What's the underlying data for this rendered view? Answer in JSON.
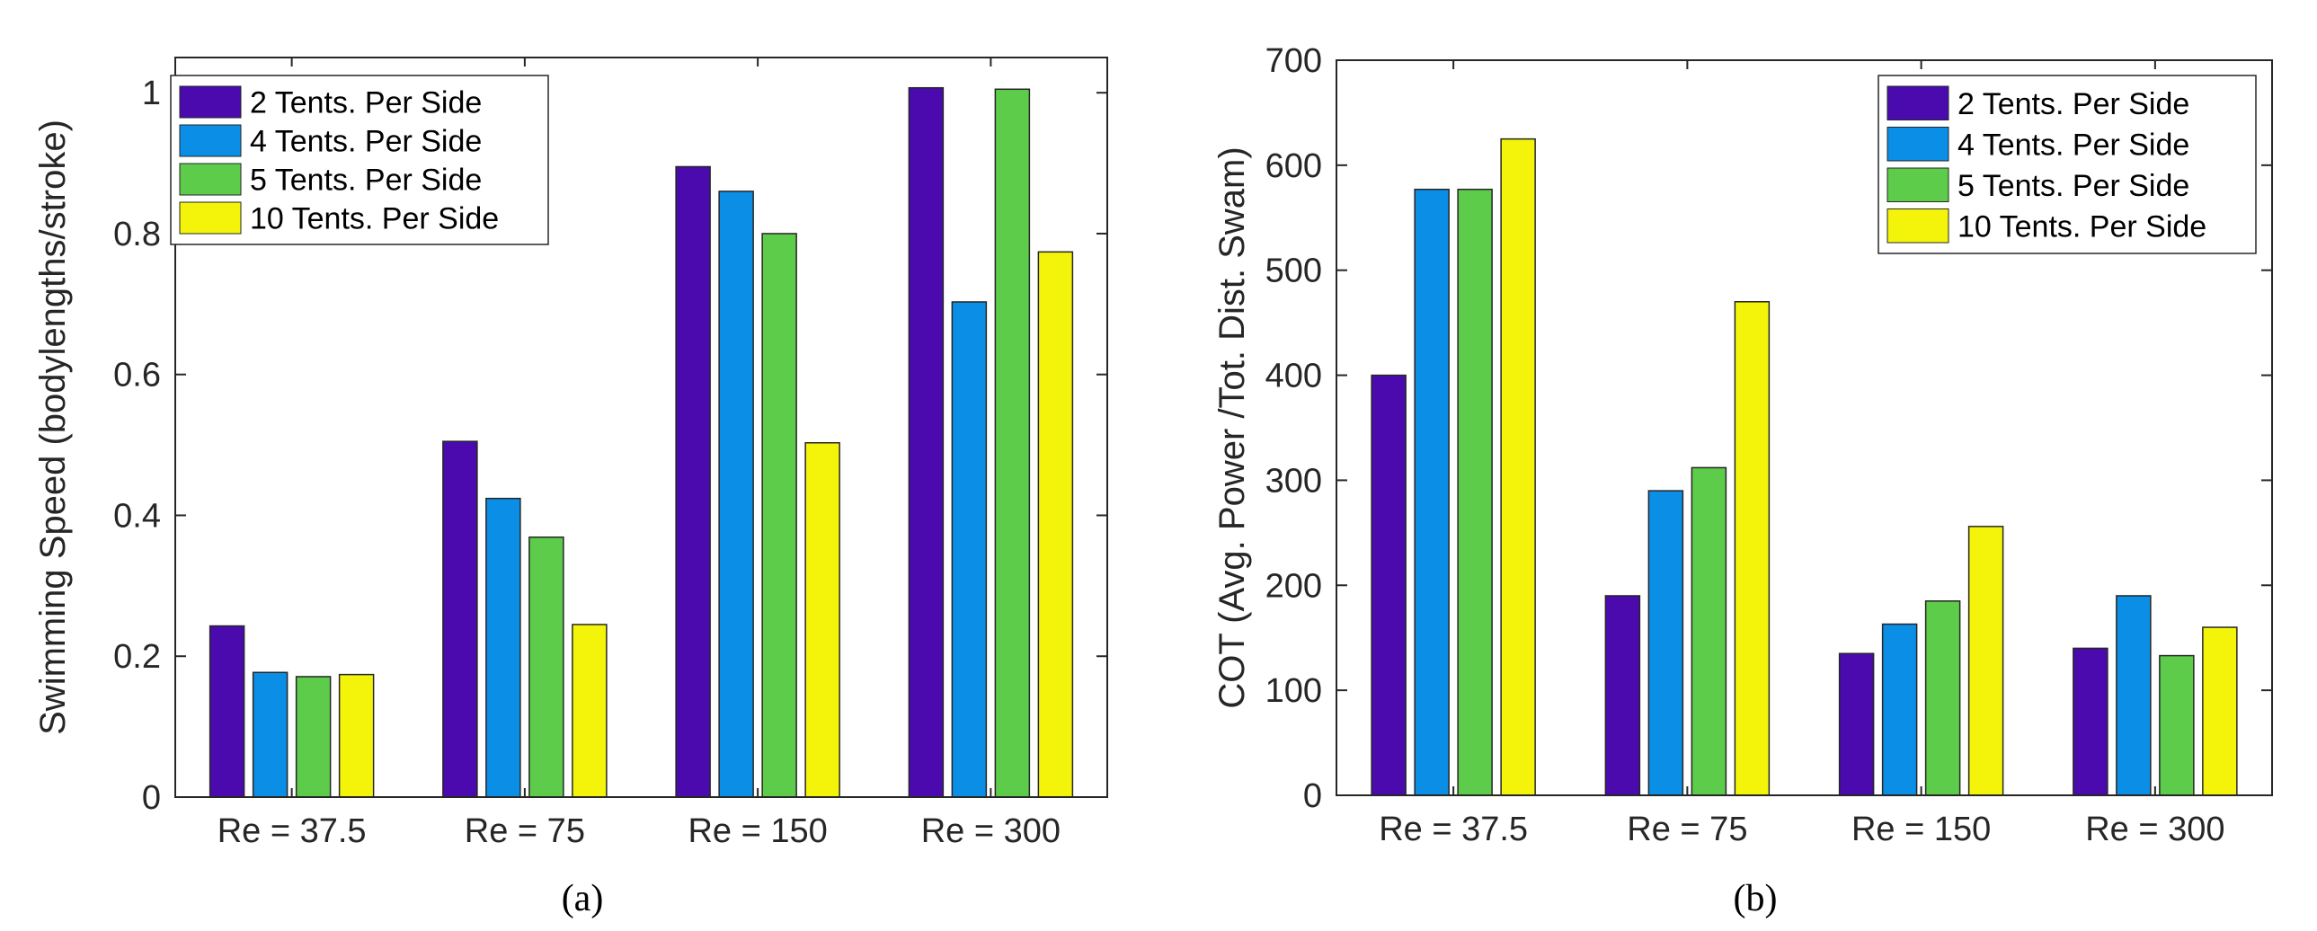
{
  "chart_data": [
    {
      "type": "bar",
      "caption": "(a)",
      "categories": [
        "Re = 37.5",
        "Re = 75",
        "Re = 150",
        "Re = 300"
      ],
      "series": [
        {
          "name": "2 Tents. Per Side",
          "color": "#4A0AAD",
          "values": [
            0.243,
            0.505,
            0.895,
            1.007
          ]
        },
        {
          "name": "4 Tents. Per Side",
          "color": "#0A8EE6",
          "values": [
            0.177,
            0.424,
            0.86,
            0.703
          ]
        },
        {
          "name": "5 Tents. Per Side",
          "color": "#5DCC4A",
          "values": [
            0.171,
            0.369,
            0.8,
            1.005
          ]
        },
        {
          "name": "10 Tents. Per Side",
          "color": "#F4F40A",
          "values": [
            0.174,
            0.245,
            0.503,
            0.774
          ]
        }
      ],
      "xlabel": "",
      "ylabel": "Swimming Speed (bodylengths/stroke)",
      "ylim": [
        0,
        1.05
      ],
      "yticks": [
        0,
        0.2,
        0.4,
        0.6,
        0.8,
        1
      ],
      "ytick_labels": [
        "0",
        "0.2",
        "0.4",
        "0.6",
        "0.8",
        "1"
      ],
      "legend_position": "top-left",
      "grid": false
    },
    {
      "type": "bar",
      "caption": "(b)",
      "categories": [
        "Re = 37.5",
        "Re = 75",
        "Re = 150",
        "Re = 300"
      ],
      "series": [
        {
          "name": "2 Tents. Per Side",
          "color": "#4A0AAD",
          "values": [
            400,
            190,
            135,
            140
          ]
        },
        {
          "name": "4 Tents. Per Side",
          "color": "#0A8EE6",
          "values": [
            577,
            290,
            163,
            190
          ]
        },
        {
          "name": "5 Tents. Per Side",
          "color": "#5DCC4A",
          "values": [
            577,
            312,
            185,
            133
          ]
        },
        {
          "name": "10 Tents. Per Side",
          "color": "#F4F40A",
          "values": [
            625,
            470,
            256,
            160
          ]
        }
      ],
      "xlabel": "",
      "ylabel": "COT (Avg. Power /Tot. Dist. Swam)",
      "ylim": [
        0,
        700
      ],
      "yticks": [
        0,
        100,
        200,
        300,
        400,
        500,
        600,
        700
      ],
      "ytick_labels": [
        "0",
        "100",
        "200",
        "300",
        "400",
        "500",
        "600",
        "700"
      ],
      "legend_position": "top-right",
      "grid": false
    }
  ]
}
